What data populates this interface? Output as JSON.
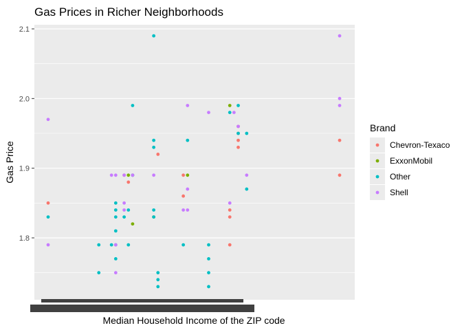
{
  "chart_data": {
    "type": "scatter",
    "title": "Gas Prices in Richer Neighborhoods",
    "xlabel": "Median Household Income of the ZIP code",
    "ylabel": "Gas Price",
    "ylim": [
      1.715,
      2.115
    ],
    "y_ticks": [
      1.8,
      1.9,
      2.0,
      2.1
    ],
    "y_tick_labels": [
      "1.8",
      "1.9",
      "2.0",
      "2.1"
    ],
    "grid": true,
    "legend": {
      "title": "Brand",
      "placement": "right",
      "entries": [
        "Chevron-Texaco",
        "ExxonMobil",
        "Other",
        "Shell"
      ]
    },
    "colors": {
      "panel": "#ebebeb",
      "grid": "#ffffff",
      "Chevron-Texaco": "#F8766D",
      "ExxonMobil": "#7CAE00",
      "Other": "#00BFC4",
      "Shell": "#C77CFF",
      "tick_band": "#404040"
    },
    "series": [
      {
        "name": "Chevron-Texaco",
        "points": [
          [
            1,
            1.85
          ],
          [
            19,
            1.89
          ],
          [
            20,
            1.88
          ],
          [
            27,
            1.92
          ],
          [
            33,
            1.89
          ],
          [
            33,
            1.86
          ],
          [
            44,
            1.84
          ],
          [
            44,
            1.83
          ],
          [
            44,
            1.79
          ],
          [
            46,
            1.96
          ],
          [
            46,
            1.95
          ],
          [
            46,
            1.94
          ],
          [
            46,
            1.93
          ],
          [
            70,
            1.94
          ],
          [
            70,
            1.89
          ]
        ]
      },
      {
        "name": "ExxonMobil",
        "points": [
          [
            20,
            1.89
          ],
          [
            21,
            1.89
          ],
          [
            21,
            1.82
          ],
          [
            26,
            1.83
          ],
          [
            34,
            1.89
          ],
          [
            44,
            1.99
          ]
        ]
      },
      {
        "name": "Other",
        "points": [
          [
            1,
            1.83
          ],
          [
            13,
            1.79
          ],
          [
            13,
            1.75
          ],
          [
            16,
            1.79
          ],
          [
            17,
            1.85
          ],
          [
            17,
            1.84
          ],
          [
            17,
            1.83
          ],
          [
            17,
            1.81
          ],
          [
            17,
            1.79
          ],
          [
            17,
            1.77
          ],
          [
            19,
            1.83
          ],
          [
            20,
            1.84
          ],
          [
            20,
            1.79
          ],
          [
            21,
            1.99
          ],
          [
            21,
            1.89
          ],
          [
            26,
            2.09
          ],
          [
            26,
            1.94
          ],
          [
            26,
            1.93
          ],
          [
            26,
            1.84
          ],
          [
            26,
            1.83
          ],
          [
            27,
            1.75
          ],
          [
            27,
            1.74
          ],
          [
            27,
            1.73
          ],
          [
            33,
            1.79
          ],
          [
            34,
            1.94
          ],
          [
            39,
            1.79
          ],
          [
            39,
            1.77
          ],
          [
            39,
            1.75
          ],
          [
            39,
            1.73
          ],
          [
            44,
            1.98
          ],
          [
            46,
            1.99
          ],
          [
            46,
            1.95
          ],
          [
            48,
            1.95
          ],
          [
            48,
            1.87
          ]
        ]
      },
      {
        "name": "Shell",
        "points": [
          [
            1,
            1.97
          ],
          [
            1,
            1.79
          ],
          [
            16,
            1.89
          ],
          [
            17,
            1.89
          ],
          [
            17,
            1.79
          ],
          [
            17,
            1.75
          ],
          [
            19,
            1.85
          ],
          [
            19,
            1.84
          ],
          [
            19,
            1.89
          ],
          [
            21,
            1.89
          ],
          [
            26,
            1.89
          ],
          [
            33,
            1.84
          ],
          [
            34,
            1.99
          ],
          [
            34,
            1.87
          ],
          [
            34,
            1.84
          ],
          [
            39,
            1.98
          ],
          [
            44,
            1.85
          ],
          [
            45,
            1.98
          ],
          [
            46,
            1.96
          ],
          [
            48,
            1.89
          ],
          [
            70,
            2.09
          ],
          [
            70,
            2.0
          ],
          [
            70,
            1.99
          ]
        ]
      }
    ]
  }
}
